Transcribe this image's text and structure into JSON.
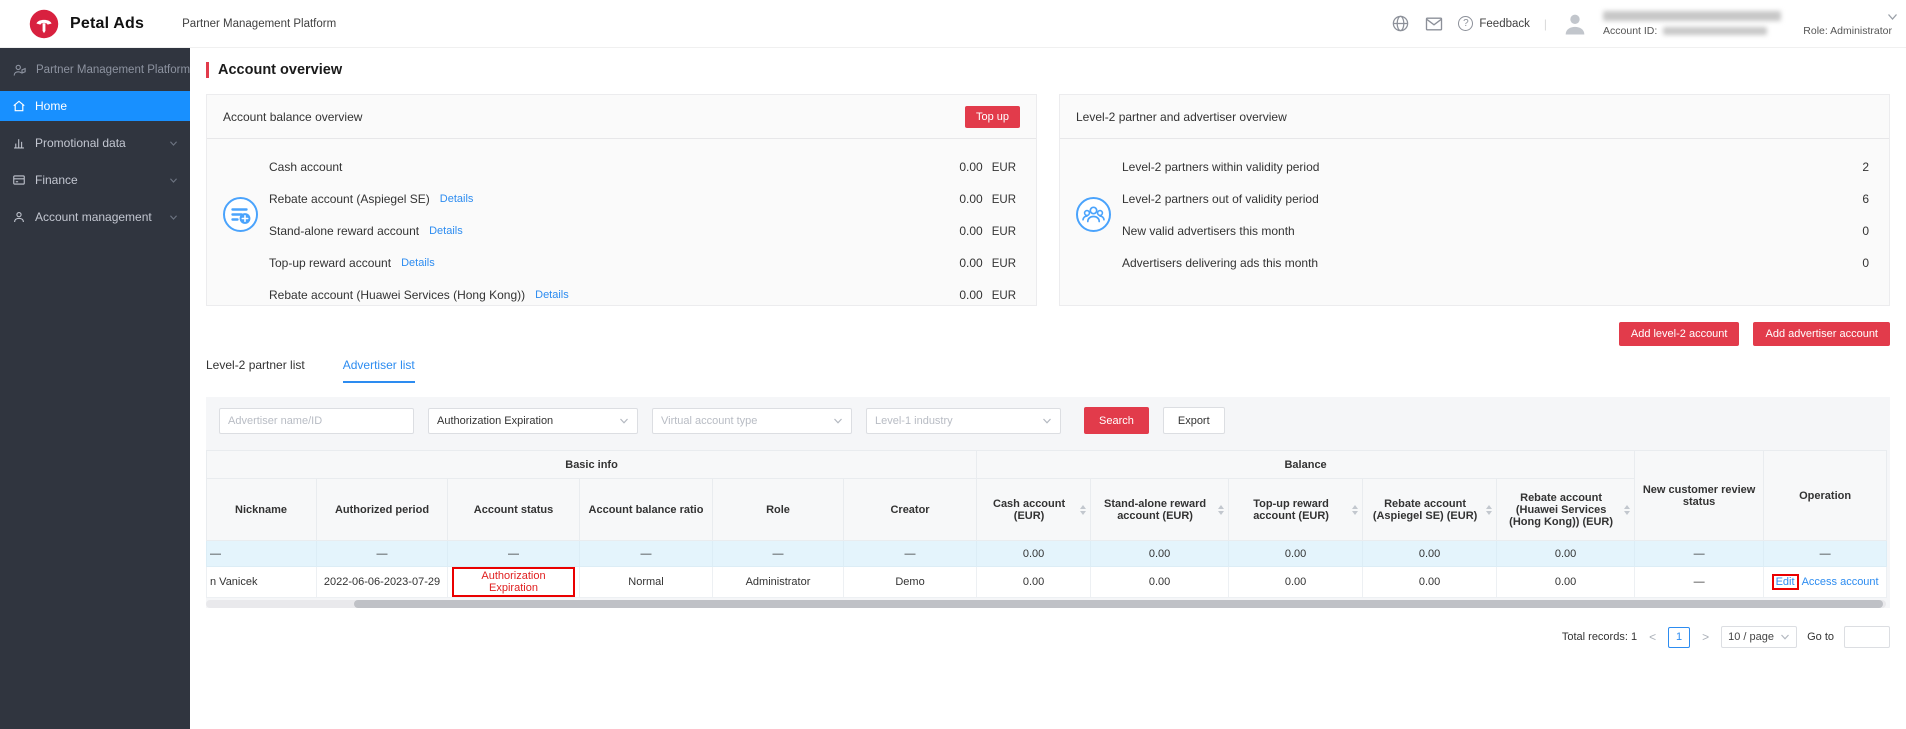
{
  "topbar": {
    "logo_text": "Petal Ads",
    "platform_name": "Partner Management Platform",
    "feedback_label": "Feedback",
    "divider": "|",
    "help_glyph": "?",
    "account_id_label": "Account ID:",
    "role": "Role: Administrator"
  },
  "sidebar": {
    "header": "Partner Management Platform",
    "items": [
      {
        "label": "Home",
        "active": true
      },
      {
        "label": "Promotional data"
      },
      {
        "label": "Finance"
      },
      {
        "label": "Account management"
      }
    ]
  },
  "page": {
    "title": "Account overview"
  },
  "balance_card": {
    "title": "Account balance overview",
    "topup_label": "Top up",
    "details_label": "Details",
    "rows": [
      {
        "label": "Cash account",
        "value": "0.00",
        "currency": "EUR"
      },
      {
        "label": "Rebate account (Aspiegel SE)",
        "value": "0.00",
        "currency": "EUR"
      },
      {
        "label": "Stand-alone reward account",
        "value": "0.00",
        "currency": "EUR"
      },
      {
        "label": "Top-up reward account",
        "value": "0.00",
        "currency": "EUR"
      },
      {
        "label": "Rebate account (Huawei Services (Hong Kong))",
        "value": "0.00",
        "currency": "EUR"
      }
    ]
  },
  "partner_card": {
    "title": "Level-2 partner and advertiser overview",
    "rows": [
      {
        "label": "Level-2 partners within validity period",
        "value": "2"
      },
      {
        "label": "Level-2 partners out of validity period",
        "value": "6"
      },
      {
        "label": "New valid advertisers this month",
        "value": "0"
      },
      {
        "label": "Advertisers delivering ads this month",
        "value": "0"
      }
    ]
  },
  "actions": {
    "add_level2": "Add level-2 account",
    "add_advertiser": "Add advertiser account"
  },
  "tabs": [
    {
      "label": "Level-2 partner list",
      "active": false
    },
    {
      "label": "Advertiser list",
      "active": true
    }
  ],
  "filters": {
    "name_placeholder": "Advertiser name/ID",
    "auth_select_value": "Authorization Expiration",
    "virtual_placeholder": "Virtual account type",
    "industry_placeholder": "Level-1 industry",
    "search_label": "Search",
    "export_label": "Export"
  },
  "table": {
    "groups": [
      {
        "label": "Basic info"
      },
      {
        "label": "Balance"
      }
    ],
    "columns": [
      {
        "label": "Nickname",
        "sortable": false
      },
      {
        "label": "Authorized period",
        "sortable": false
      },
      {
        "label": "Account status",
        "sortable": false
      },
      {
        "label": "Account balance ratio",
        "sortable": false
      },
      {
        "label": "Role",
        "sortable": false
      },
      {
        "label": "Creator",
        "sortable": false
      },
      {
        "label": "Cash account (EUR)",
        "sortable": true
      },
      {
        "label": "Stand-alone reward account (EUR)",
        "sortable": true
      },
      {
        "label": "Top-up reward account (EUR)",
        "sortable": true
      },
      {
        "label": "Rebate account (Aspiegel SE) (EUR)",
        "sortable": true
      },
      {
        "label": "Rebate account (Huawei Services (Hong Kong)) (EUR)",
        "sortable": true
      },
      {
        "label": "New customer review status",
        "sortable": false
      },
      {
        "label": "Operation",
        "sortable": false
      }
    ],
    "rows": [
      {
        "highlight": true,
        "cells": [
          "—",
          "—",
          "—",
          "—",
          "—",
          "—",
          "0.00",
          "0.00",
          "0.00",
          "0.00",
          "0.00",
          "—",
          "—"
        ]
      },
      {
        "highlight": false,
        "cells": [
          "n Vanicek",
          "2022-06-06-2023-07-29",
          {
            "text": "Authorization Expiration",
            "color": "red",
            "annotation_box": true
          },
          "Normal",
          "Administrator",
          "Demo",
          "0.00",
          "0.00",
          "0.00",
          "0.00",
          "0.00",
          "—",
          {
            "links": [
              {
                "text": "Edit",
                "annotation_box": true
              },
              {
                "text": "Access account"
              }
            ]
          }
        ]
      }
    ]
  },
  "pagination": {
    "total_label": "Total records: 1",
    "prev": "<",
    "page": "1",
    "next": ">",
    "page_size": "10 / page",
    "goto_label": "Go to"
  }
}
